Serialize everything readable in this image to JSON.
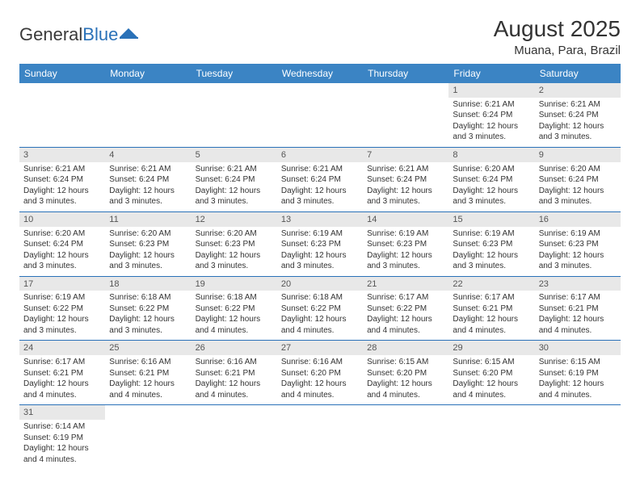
{
  "logo": {
    "text1": "General",
    "text2": "Blue",
    "color1": "#3a3a3a",
    "color2": "#2a71b8"
  },
  "title": "August 2025",
  "location": "Muana, Para, Brazil",
  "header_bg": "#3b84c4",
  "daynum_bg": "#e8e8e8",
  "border_color": "#2a71b8",
  "weekdays": [
    "Sunday",
    "Monday",
    "Tuesday",
    "Wednesday",
    "Thursday",
    "Friday",
    "Saturday"
  ],
  "cells": [
    [
      null,
      null,
      null,
      null,
      null,
      {
        "n": "1",
        "sr": "6:21 AM",
        "ss": "6:24 PM",
        "dl": "12 hours and 3 minutes."
      },
      {
        "n": "2",
        "sr": "6:21 AM",
        "ss": "6:24 PM",
        "dl": "12 hours and 3 minutes."
      }
    ],
    [
      {
        "n": "3",
        "sr": "6:21 AM",
        "ss": "6:24 PM",
        "dl": "12 hours and 3 minutes."
      },
      {
        "n": "4",
        "sr": "6:21 AM",
        "ss": "6:24 PM",
        "dl": "12 hours and 3 minutes."
      },
      {
        "n": "5",
        "sr": "6:21 AM",
        "ss": "6:24 PM",
        "dl": "12 hours and 3 minutes."
      },
      {
        "n": "6",
        "sr": "6:21 AM",
        "ss": "6:24 PM",
        "dl": "12 hours and 3 minutes."
      },
      {
        "n": "7",
        "sr": "6:21 AM",
        "ss": "6:24 PM",
        "dl": "12 hours and 3 minutes."
      },
      {
        "n": "8",
        "sr": "6:20 AM",
        "ss": "6:24 PM",
        "dl": "12 hours and 3 minutes."
      },
      {
        "n": "9",
        "sr": "6:20 AM",
        "ss": "6:24 PM",
        "dl": "12 hours and 3 minutes."
      }
    ],
    [
      {
        "n": "10",
        "sr": "6:20 AM",
        "ss": "6:24 PM",
        "dl": "12 hours and 3 minutes."
      },
      {
        "n": "11",
        "sr": "6:20 AM",
        "ss": "6:23 PM",
        "dl": "12 hours and 3 minutes."
      },
      {
        "n": "12",
        "sr": "6:20 AM",
        "ss": "6:23 PM",
        "dl": "12 hours and 3 minutes."
      },
      {
        "n": "13",
        "sr": "6:19 AM",
        "ss": "6:23 PM",
        "dl": "12 hours and 3 minutes."
      },
      {
        "n": "14",
        "sr": "6:19 AM",
        "ss": "6:23 PM",
        "dl": "12 hours and 3 minutes."
      },
      {
        "n": "15",
        "sr": "6:19 AM",
        "ss": "6:23 PM",
        "dl": "12 hours and 3 minutes."
      },
      {
        "n": "16",
        "sr": "6:19 AM",
        "ss": "6:23 PM",
        "dl": "12 hours and 3 minutes."
      }
    ],
    [
      {
        "n": "17",
        "sr": "6:19 AM",
        "ss": "6:22 PM",
        "dl": "12 hours and 3 minutes."
      },
      {
        "n": "18",
        "sr": "6:18 AM",
        "ss": "6:22 PM",
        "dl": "12 hours and 3 minutes."
      },
      {
        "n": "19",
        "sr": "6:18 AM",
        "ss": "6:22 PM",
        "dl": "12 hours and 4 minutes."
      },
      {
        "n": "20",
        "sr": "6:18 AM",
        "ss": "6:22 PM",
        "dl": "12 hours and 4 minutes."
      },
      {
        "n": "21",
        "sr": "6:17 AM",
        "ss": "6:22 PM",
        "dl": "12 hours and 4 minutes."
      },
      {
        "n": "22",
        "sr": "6:17 AM",
        "ss": "6:21 PM",
        "dl": "12 hours and 4 minutes."
      },
      {
        "n": "23",
        "sr": "6:17 AM",
        "ss": "6:21 PM",
        "dl": "12 hours and 4 minutes."
      }
    ],
    [
      {
        "n": "24",
        "sr": "6:17 AM",
        "ss": "6:21 PM",
        "dl": "12 hours and 4 minutes."
      },
      {
        "n": "25",
        "sr": "6:16 AM",
        "ss": "6:21 PM",
        "dl": "12 hours and 4 minutes."
      },
      {
        "n": "26",
        "sr": "6:16 AM",
        "ss": "6:21 PM",
        "dl": "12 hours and 4 minutes."
      },
      {
        "n": "27",
        "sr": "6:16 AM",
        "ss": "6:20 PM",
        "dl": "12 hours and 4 minutes."
      },
      {
        "n": "28",
        "sr": "6:15 AM",
        "ss": "6:20 PM",
        "dl": "12 hours and 4 minutes."
      },
      {
        "n": "29",
        "sr": "6:15 AM",
        "ss": "6:20 PM",
        "dl": "12 hours and 4 minutes."
      },
      {
        "n": "30",
        "sr": "6:15 AM",
        "ss": "6:19 PM",
        "dl": "12 hours and 4 minutes."
      }
    ],
    [
      {
        "n": "31",
        "sr": "6:14 AM",
        "ss": "6:19 PM",
        "dl": "12 hours and 4 minutes."
      },
      null,
      null,
      null,
      null,
      null,
      null
    ]
  ],
  "labels": {
    "sunrise": "Sunrise: ",
    "sunset": "Sunset: ",
    "daylight": "Daylight: "
  }
}
